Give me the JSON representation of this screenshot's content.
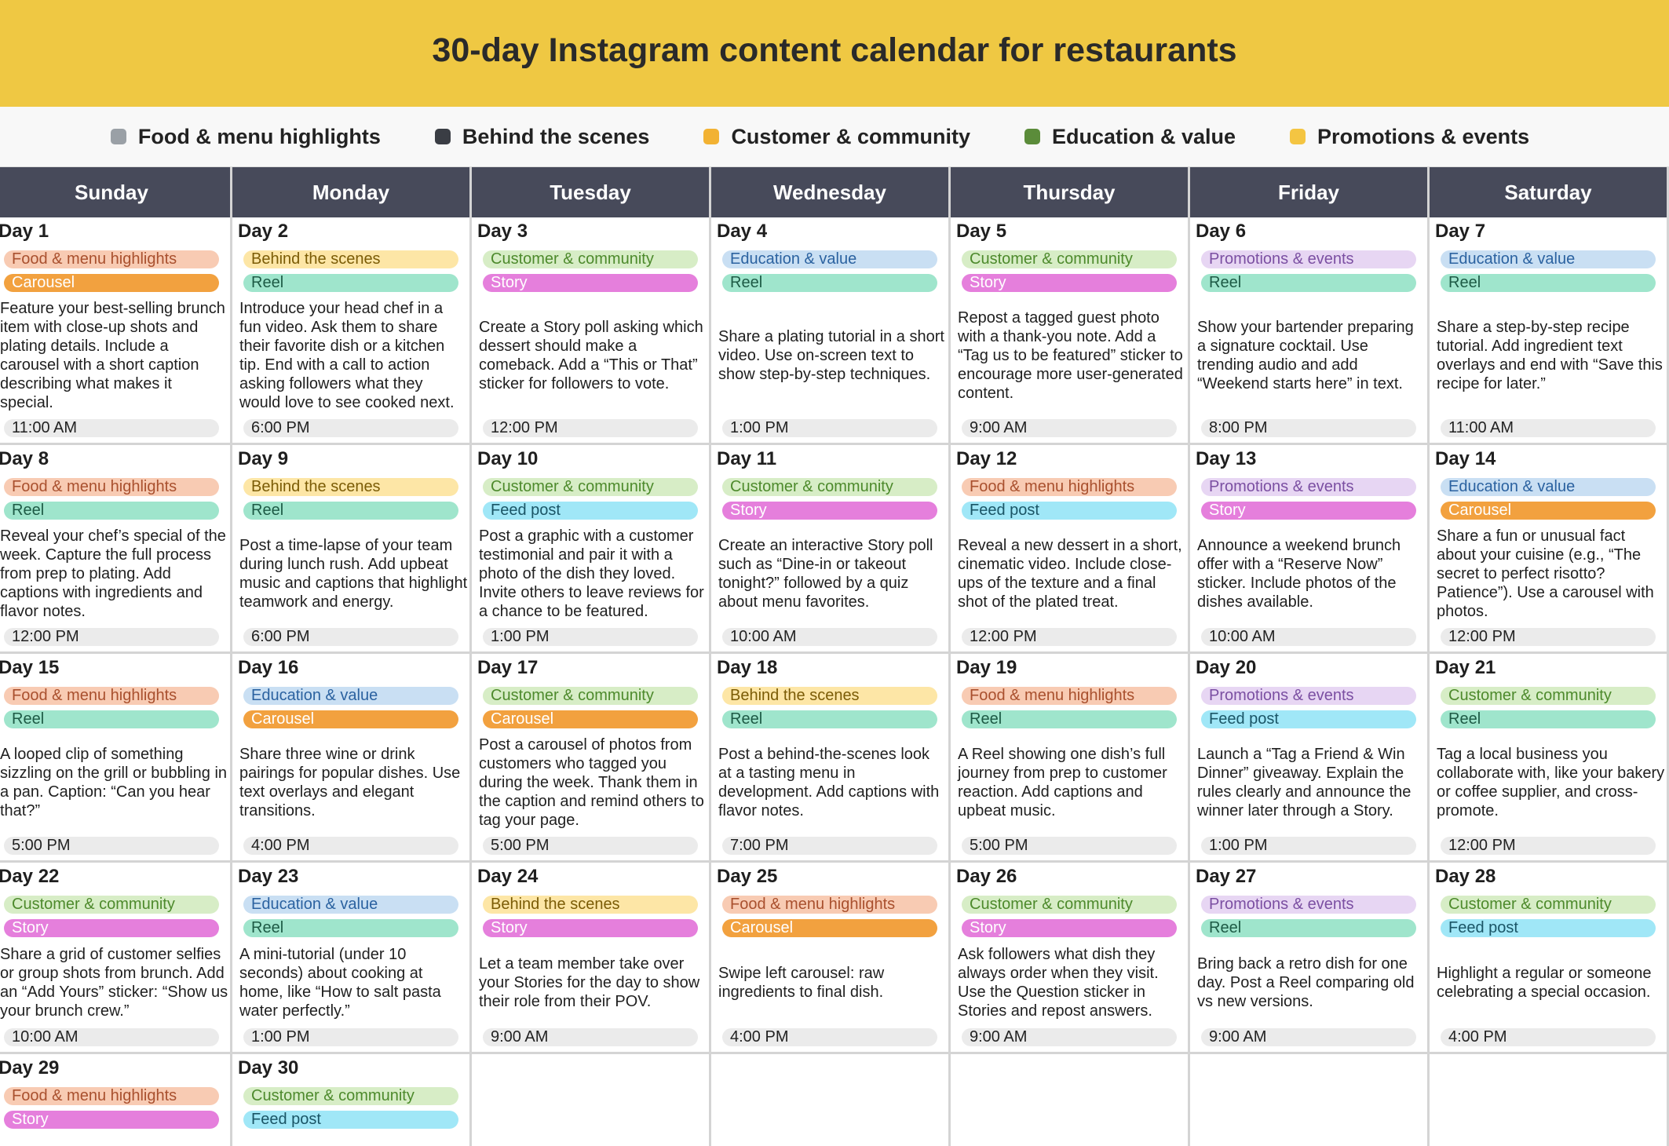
{
  "header": {
    "title": "30-day Instagram content calendar for restaurants"
  },
  "legend": [
    {
      "name": "Food & menu highlights",
      "color": "#f8cbb3",
      "text_color": "#a9502e",
      "icon": "#9aa0a6"
    },
    {
      "name": "Behind the scenes",
      "color": "#fde6a6",
      "text_color": "#7b5c06",
      "icon": "#3a3d44"
    },
    {
      "name": "Customer & community",
      "color": "#d7edc6",
      "text_color": "#4d8a2c",
      "icon": "#f2b233"
    },
    {
      "name": "Education & value",
      "color": "#c9dff3",
      "text_color": "#2b62a0",
      "icon": "#5b8c3a"
    },
    {
      "name": "Promotions & events",
      "color": "#e7d6f3",
      "text_color": "#7b4fa2",
      "icon": "#f4c542"
    }
  ],
  "format_styles": {
    "Carousel": {
      "color": "#f2a13f",
      "text_color": "#ffffff"
    },
    "Reel": {
      "color": "#9fe5cc",
      "text_color": "#1d5a45"
    },
    "Story": {
      "color": "#e57fdc",
      "text_color": "#ffffff"
    },
    "Feed post": {
      "color": "#a0e7f7",
      "text_color": "#1a5566"
    }
  },
  "weekdays": [
    "Sunday",
    "Monday",
    "Tuesday",
    "Wednesday",
    "Thursday",
    "Friday",
    "Saturday"
  ],
  "days": [
    {
      "day": "Day 1",
      "category": "Food & menu highlights",
      "format": "Carousel",
      "description": "Feature your best-selling brunch item with close-up shots and plating details. Include a carousel with a short caption describing what makes it special.",
      "time": "11:00 AM"
    },
    {
      "day": "Day 2",
      "category": "Behind the scenes",
      "format": "Reel",
      "description": "Introduce your head chef in a fun video. Ask them to share their favorite dish or a kitchen tip. End with a call to action asking followers what they would love to see cooked next.",
      "time": "6:00 PM"
    },
    {
      "day": "Day 3",
      "category": "Customer & community",
      "format": "Story",
      "description": "Create a Story poll asking which dessert should make a comeback. Add a “This or That” sticker for followers to vote.",
      "time": "12:00 PM"
    },
    {
      "day": "Day 4",
      "category": "Education & value",
      "format": "Reel",
      "description": "Share a plating tutorial in a short video. Use on-screen text to show step-by-step techniques.",
      "time": "1:00 PM"
    },
    {
      "day": "Day 5",
      "category": "Customer & community",
      "format": "Story",
      "description": "Repost a tagged guest photo with a thank-you note. Add a “Tag us to be featured” sticker to encourage more user-generated content.",
      "time": "9:00 AM"
    },
    {
      "day": "Day 6",
      "category": "Promotions & events",
      "format": "Reel",
      "description": "Show your bartender preparing a signature cocktail. Use trending audio and add “Weekend starts here” in text.",
      "time": "8:00 PM"
    },
    {
      "day": "Day 7",
      "category": "Education & value",
      "format": "Reel",
      "description": "Share a step-by-step recipe tutorial. Add ingredient text overlays and end with “Save this recipe for later.”",
      "time": "11:00 AM"
    },
    {
      "day": "Day 8",
      "category": "Food & menu highlights",
      "format": "Reel",
      "description": "Reveal your chef’s special of the week. Capture the full process from prep to plating. Add captions with ingredients and flavor notes.",
      "time": "12:00 PM"
    },
    {
      "day": "Day 9",
      "category": "Behind the scenes",
      "format": "Reel",
      "description": "Post a time-lapse of your team during lunch rush. Add upbeat music and captions that highlight teamwork and energy.",
      "time": "6:00 PM"
    },
    {
      "day": "Day 10",
      "category": "Customer & community",
      "format": "Feed post",
      "description": "Post a graphic with a customer testimonial and pair it with a photo of the dish they loved. Invite others to leave reviews for a chance to be featured.",
      "time": "1:00 PM"
    },
    {
      "day": "Day 11",
      "category": "Customer & community",
      "format": "Story",
      "description": "Create an interactive Story poll such as “Dine-in or takeout tonight?” followed by a quiz about menu favorites.",
      "time": "10:00 AM"
    },
    {
      "day": "Day 12",
      "category": "Food & menu highlights",
      "format": "Feed post",
      "description": "Reveal a new dessert in a short, cinematic video. Include close-ups of the texture and a final shot of the plated treat.",
      "time": "12:00 PM"
    },
    {
      "day": "Day 13",
      "category": "Promotions & events",
      "format": "Story",
      "description": "Announce a weekend brunch offer with a “Reserve Now” sticker. Include photos of the dishes available.",
      "time": "10:00 AM"
    },
    {
      "day": "Day 14",
      "category": "Education & value",
      "format": "Carousel",
      "description": "Share a fun or unusual fact about your cuisine (e.g., “The secret to perfect risotto? Patience”). Use a carousel with photos.",
      "time": "12:00 PM"
    },
    {
      "day": "Day 15",
      "category": "Food & menu highlights",
      "format": "Reel",
      "description": "A looped clip of something sizzling on the grill or bubbling in a pan. Caption: “Can you hear that?”",
      "time": "5:00 PM"
    },
    {
      "day": "Day 16",
      "category": "Education & value",
      "format": "Carousel",
      "description": "Share three wine or drink pairings for popular dishes. Use text overlays and elegant transitions.",
      "time": "4:00 PM"
    },
    {
      "day": "Day 17",
      "category": "Customer & community",
      "format": "Carousel",
      "description": "Post a carousel of photos from customers who tagged you during the week. Thank them in the caption and remind others to tag your page.",
      "time": "5:00 PM"
    },
    {
      "day": "Day 18",
      "category": "Behind the scenes",
      "format": "Reel",
      "description": "Post a behind-the-scenes look at a tasting menu in development. Add captions with flavor notes.",
      "time": "7:00 PM"
    },
    {
      "day": "Day 19",
      "category": "Food & menu highlights",
      "format": "Reel",
      "description": "A Reel showing one dish’s full journey from prep to customer reaction. Add captions and upbeat music.",
      "time": "5:00 PM"
    },
    {
      "day": "Day 20",
      "category": "Promotions & events",
      "format": "Feed post",
      "description": "Launch a “Tag a Friend & Win Dinner” giveaway. Explain the rules clearly and announce the winner later through a Story.",
      "time": "1:00 PM"
    },
    {
      "day": "Day 21",
      "category": "Customer & community",
      "format": "Reel",
      "description": "Tag a local business you collaborate with, like your bakery or coffee supplier, and cross-promote.",
      "time": "12:00 PM"
    },
    {
      "day": "Day 22",
      "category": "Customer & community",
      "format": "Story",
      "description": "Share a grid of customer selfies or group shots from brunch. Add an “Add Yours” sticker: “Show us your brunch crew.”",
      "time": "10:00 AM"
    },
    {
      "day": "Day 23",
      "category": "Education & value",
      "format": "Reel",
      "description": "A mini-tutorial (under 10 seconds) about cooking at home, like “How to salt pasta water perfectly.”",
      "time": "1:00 PM"
    },
    {
      "day": "Day 24",
      "category": "Behind the scenes",
      "format": "Story",
      "description": "Let a team member take over your Stories for the day to show their role from their POV.",
      "time": "9:00 AM"
    },
    {
      "day": "Day 25",
      "category": "Food & menu highlights",
      "format": "Carousel",
      "description": "Swipe left carousel: raw ingredients to final dish.",
      "time": "4:00 PM"
    },
    {
      "day": "Day 26",
      "category": "Customer & community",
      "format": "Story",
      "description": "Ask followers what dish they always order when they visit. Use the Question sticker in Stories and repost answers.",
      "time": "9:00 AM"
    },
    {
      "day": "Day 27",
      "category": "Promotions & events",
      "format": "Reel",
      "description": "Bring back a retro dish for one day. Post a Reel comparing old vs new versions.",
      "time": "9:00 AM"
    },
    {
      "day": "Day 28",
      "category": "Customer & community",
      "format": "Feed post",
      "description": "Highlight a regular or someone celebrating a special occasion.",
      "time": "4:00 PM"
    },
    {
      "day": "Day 29",
      "category": "Food & menu highlights",
      "format": "Story"
    },
    {
      "day": "Day 30",
      "category": "Customer & community",
      "format": "Feed post"
    }
  ]
}
